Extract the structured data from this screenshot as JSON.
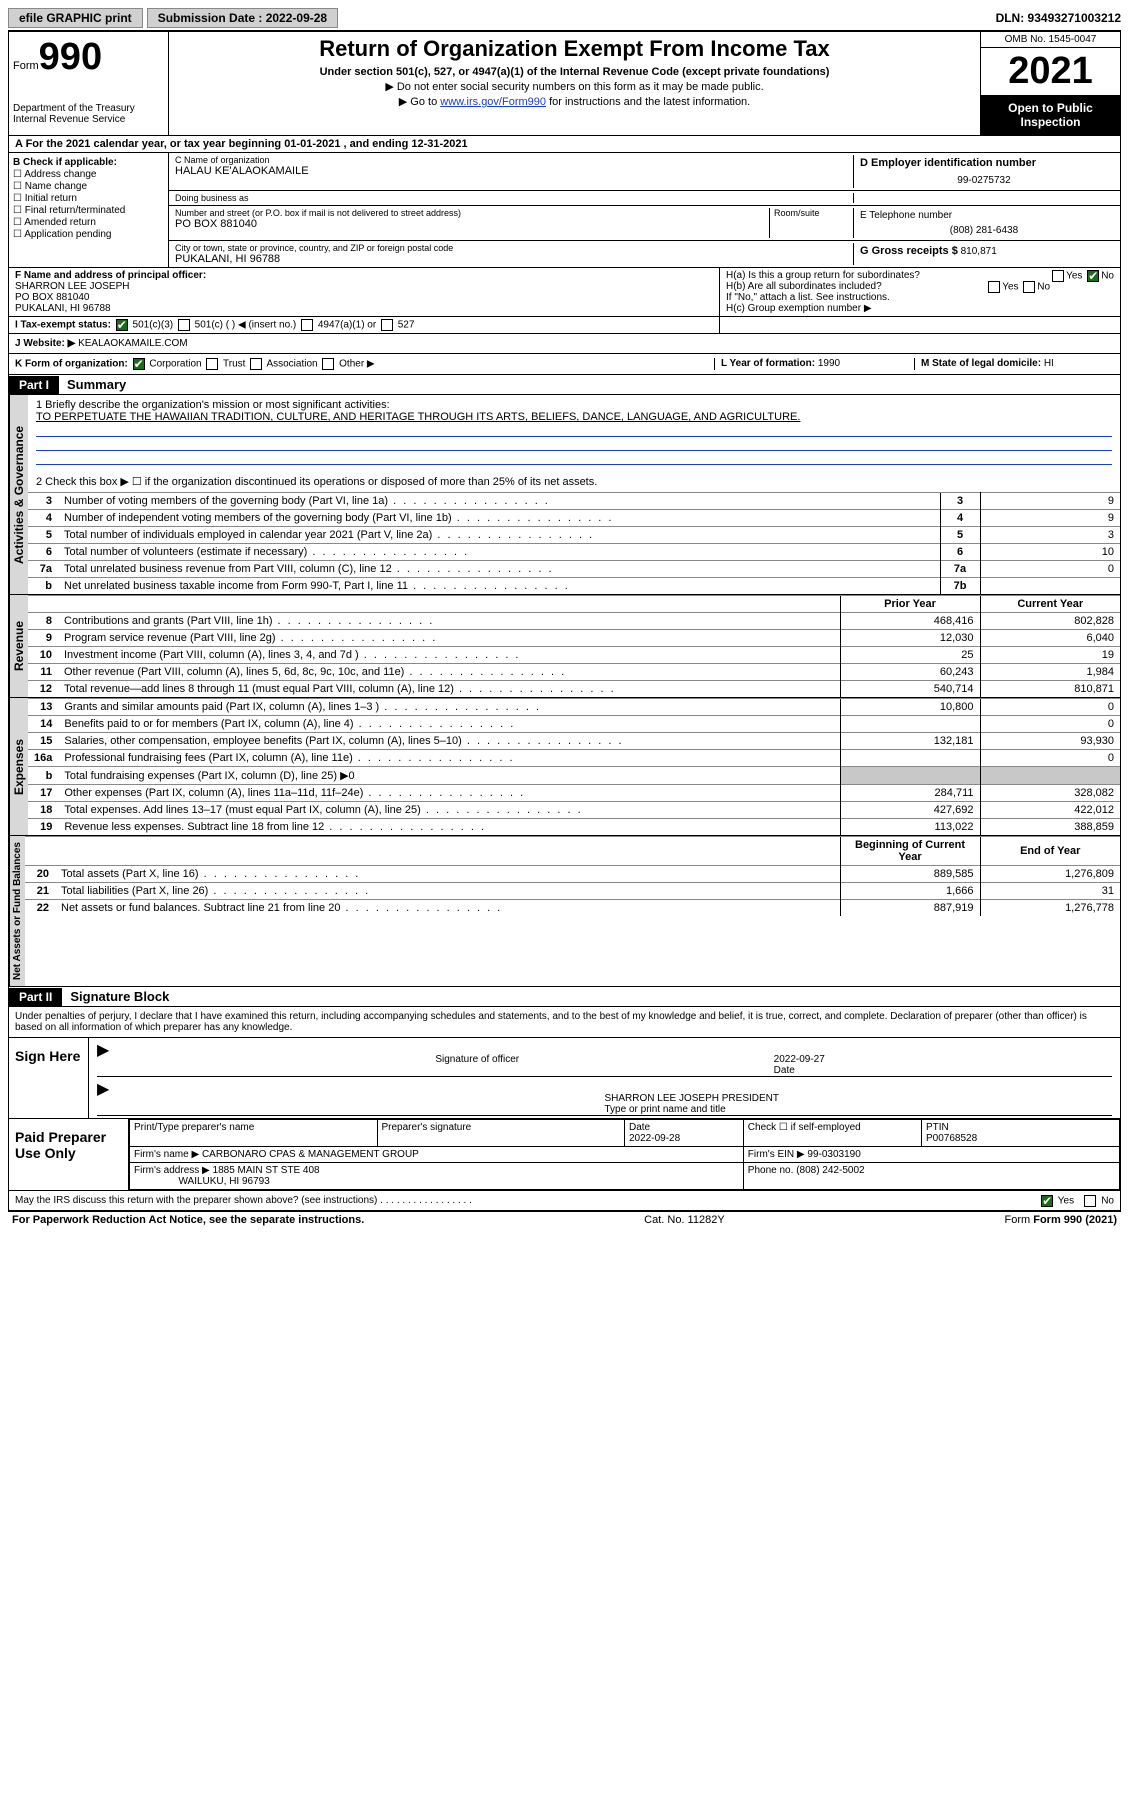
{
  "topbar": {
    "efile_label": "efile GRAPHIC print",
    "submission_label": "Submission Date : 2022-09-28",
    "dln": "DLN: 93493271003212"
  },
  "header": {
    "form_prefix": "Form",
    "form_number": "990",
    "dept": "Department of the Treasury\nInternal Revenue Service",
    "title": "Return of Organization Exempt From Income Tax",
    "subtitle": "Under section 501(c), 527, or 4947(a)(1) of the Internal Revenue Code (except private foundations)",
    "note1": "▶ Do not enter social security numbers on this form as it may be made public.",
    "note2_pre": "▶ Go to ",
    "note2_link": "www.irs.gov/Form990",
    "note2_post": " for instructions and the latest information.",
    "omb": "OMB No. 1545-0047",
    "year": "2021",
    "open_inspection": "Open to Public Inspection"
  },
  "row_a": "A For the 2021 calendar year, or tax year beginning 01-01-2021   , and ending 12-31-2021",
  "box_b": {
    "header": "B Check if applicable:",
    "items": [
      "Address change",
      "Name change",
      "Initial return",
      "Final return/terminated",
      "Amended return",
      "Application pending"
    ]
  },
  "box_c": {
    "name_label": "C Name of organization",
    "name": "HALAU KE'ALAOKAMAILE",
    "dba_label": "Doing business as",
    "dba": "",
    "addr_label": "Number and street (or P.O. box if mail is not delivered to street address)",
    "room_label": "Room/suite",
    "addr": "PO BOX 881040",
    "city_label": "City or town, state or province, country, and ZIP or foreign postal code",
    "city": "PUKALANI, HI  96788"
  },
  "box_d": {
    "label": "D Employer identification number",
    "value": "99-0275732"
  },
  "box_e": {
    "label": "E Telephone number",
    "value": "(808) 281-6438"
  },
  "box_g": {
    "label": "G Gross receipts $",
    "value": "810,871"
  },
  "box_f": {
    "label": "F Name and address of principal officer:",
    "name": "SHARRON LEE JOSEPH",
    "addr1": "PO BOX 881040",
    "addr2": "PUKALANI, HI  96788"
  },
  "box_h": {
    "a_label": "H(a)  Is this a group return for subordinates?",
    "a_yes": "Yes",
    "a_no": "No",
    "b_label": "H(b)  Are all subordinates included?",
    "b_yes": "Yes",
    "b_no": "No",
    "b_note": "If \"No,\" attach a list. See instructions.",
    "c_label": "H(c)  Group exemption number ▶"
  },
  "row_i": {
    "label": "I   Tax-exempt status:",
    "opt1": "501(c)(3)",
    "opt2": "501(c) (  ) ◀ (insert no.)",
    "opt3": "4947(a)(1) or",
    "opt4": "527"
  },
  "row_j": {
    "label": "J   Website: ▶",
    "value": "KEALAOKAMAILE.COM"
  },
  "row_k": {
    "label": "K Form of organization:",
    "opts": [
      "Corporation",
      "Trust",
      "Association",
      "Other ▶"
    ]
  },
  "row_l": {
    "label": "L Year of formation:",
    "value": "1990"
  },
  "row_m": {
    "label": "M State of legal domicile:",
    "value": "HI"
  },
  "part1": {
    "tag": "Part I",
    "title": "Summary",
    "line1_label": "1  Briefly describe the organization's mission or most significant activities:",
    "line1_text": "TO PERPETUATE THE HAWAIIAN TRADITION, CULTURE, AND HERITAGE THROUGH ITS ARTS, BELIEFS, DANCE, LANGUAGE, AND AGRICULTURE.",
    "line2": "2   Check this box ▶ ☐  if the organization discontinued its operations or disposed of more than 25% of its net assets.",
    "govern_lines": [
      {
        "n": "3",
        "desc": "Number of voting members of the governing body (Part VI, line 1a)",
        "box": "3",
        "v": "9"
      },
      {
        "n": "4",
        "desc": "Number of independent voting members of the governing body (Part VI, line 1b)",
        "box": "4",
        "v": "9"
      },
      {
        "n": "5",
        "desc": "Total number of individuals employed in calendar year 2021 (Part V, line 2a)",
        "box": "5",
        "v": "3"
      },
      {
        "n": "6",
        "desc": "Total number of volunteers (estimate if necessary)",
        "box": "6",
        "v": "10"
      },
      {
        "n": "7a",
        "desc": "Total unrelated business revenue from Part VIII, column (C), line 12",
        "box": "7a",
        "v": "0"
      },
      {
        "n": "b",
        "desc": "Net unrelated business taxable income from Form 990-T, Part I, line 11",
        "box": "7b",
        "v": ""
      }
    ],
    "col_prior": "Prior Year",
    "col_current": "Current Year",
    "revenue_lines": [
      {
        "n": "8",
        "desc": "Contributions and grants (Part VIII, line 1h)",
        "p": "468,416",
        "c": "802,828"
      },
      {
        "n": "9",
        "desc": "Program service revenue (Part VIII, line 2g)",
        "p": "12,030",
        "c": "6,040"
      },
      {
        "n": "10",
        "desc": "Investment income (Part VIII, column (A), lines 3, 4, and 7d )",
        "p": "25",
        "c": "19"
      },
      {
        "n": "11",
        "desc": "Other revenue (Part VIII, column (A), lines 5, 6d, 8c, 9c, 10c, and 11e)",
        "p": "60,243",
        "c": "1,984"
      },
      {
        "n": "12",
        "desc": "Total revenue—add lines 8 through 11 (must equal Part VIII, column (A), line 12)",
        "p": "540,714",
        "c": "810,871"
      }
    ],
    "expense_lines": [
      {
        "n": "13",
        "desc": "Grants and similar amounts paid (Part IX, column (A), lines 1–3 )",
        "p": "10,800",
        "c": "0"
      },
      {
        "n": "14",
        "desc": "Benefits paid to or for members (Part IX, column (A), line 4)",
        "p": "",
        "c": "0"
      },
      {
        "n": "15",
        "desc": "Salaries, other compensation, employee benefits (Part IX, column (A), lines 5–10)",
        "p": "132,181",
        "c": "93,930"
      },
      {
        "n": "16a",
        "desc": "Professional fundraising fees (Part IX, column (A), line 11e)",
        "p": "",
        "c": "0"
      },
      {
        "n": "b",
        "desc": "Total fundraising expenses (Part IX, column (D), line 25) ▶0",
        "p": "GREY",
        "c": "GREY"
      },
      {
        "n": "17",
        "desc": "Other expenses (Part IX, column (A), lines 11a–11d, 11f–24e)",
        "p": "284,711",
        "c": "328,082"
      },
      {
        "n": "18",
        "desc": "Total expenses. Add lines 13–17 (must equal Part IX, column (A), line 25)",
        "p": "427,692",
        "c": "422,012"
      },
      {
        "n": "19",
        "desc": "Revenue less expenses. Subtract line 18 from line 12",
        "p": "113,022",
        "c": "388,859"
      }
    ],
    "col_begin": "Beginning of Current Year",
    "col_end": "End of Year",
    "net_lines": [
      {
        "n": "20",
        "desc": "Total assets (Part X, line 16)",
        "p": "889,585",
        "c": "1,276,809"
      },
      {
        "n": "21",
        "desc": "Total liabilities (Part X, line 26)",
        "p": "1,666",
        "c": "31"
      },
      {
        "n": "22",
        "desc": "Net assets or fund balances. Subtract line 21 from line 20",
        "p": "887,919",
        "c": "1,276,778"
      }
    ],
    "tab_activities": "Activities & Governance",
    "tab_revenue": "Revenue",
    "tab_expenses": "Expenses",
    "tab_net": "Net Assets or Fund Balances"
  },
  "part2": {
    "tag": "Part II",
    "title": "Signature Block",
    "declaration": "Under penalties of perjury, I declare that I have examined this return, including accompanying schedules and statements, and to the best of my knowledge and belief, it is true, correct, and complete. Declaration of preparer (other than officer) is based on all information of which preparer has any knowledge.",
    "sign_here": "Sign Here",
    "sig_officer_label": "Signature of officer",
    "sig_date_label": "Date",
    "sig_date": "2022-09-27",
    "sig_name": "SHARRON LEE JOSEPH  PRESIDENT",
    "sig_name_label": "Type or print name and title",
    "paid_prep": "Paid Preparer Use Only",
    "prep_name_label": "Print/Type preparer's name",
    "prep_sig_label": "Preparer's signature",
    "prep_date_label": "Date",
    "prep_date": "2022-09-28",
    "prep_check_label": "Check ☐ if self-employed",
    "ptin_label": "PTIN",
    "ptin": "P00768528",
    "firm_name_label": "Firm's name    ▶",
    "firm_name": "CARBONARO CPAS & MANAGEMENT GROUP",
    "firm_ein_label": "Firm's EIN ▶",
    "firm_ein": "99-0303190",
    "firm_addr_label": "Firm's address ▶",
    "firm_addr1": "1885 MAIN ST STE 408",
    "firm_addr2": "WAILUKU, HI  96793",
    "firm_phone_label": "Phone no.",
    "firm_phone": "(808) 242-5002",
    "may_irs": "May the IRS discuss this return with the preparer shown above? (see instructions)",
    "may_yes": "Yes",
    "may_no": "No"
  },
  "footer": {
    "left": "For Paperwork Reduction Act Notice, see the separate instructions.",
    "mid": "Cat. No. 11282Y",
    "right": "Form 990 (2021)"
  }
}
